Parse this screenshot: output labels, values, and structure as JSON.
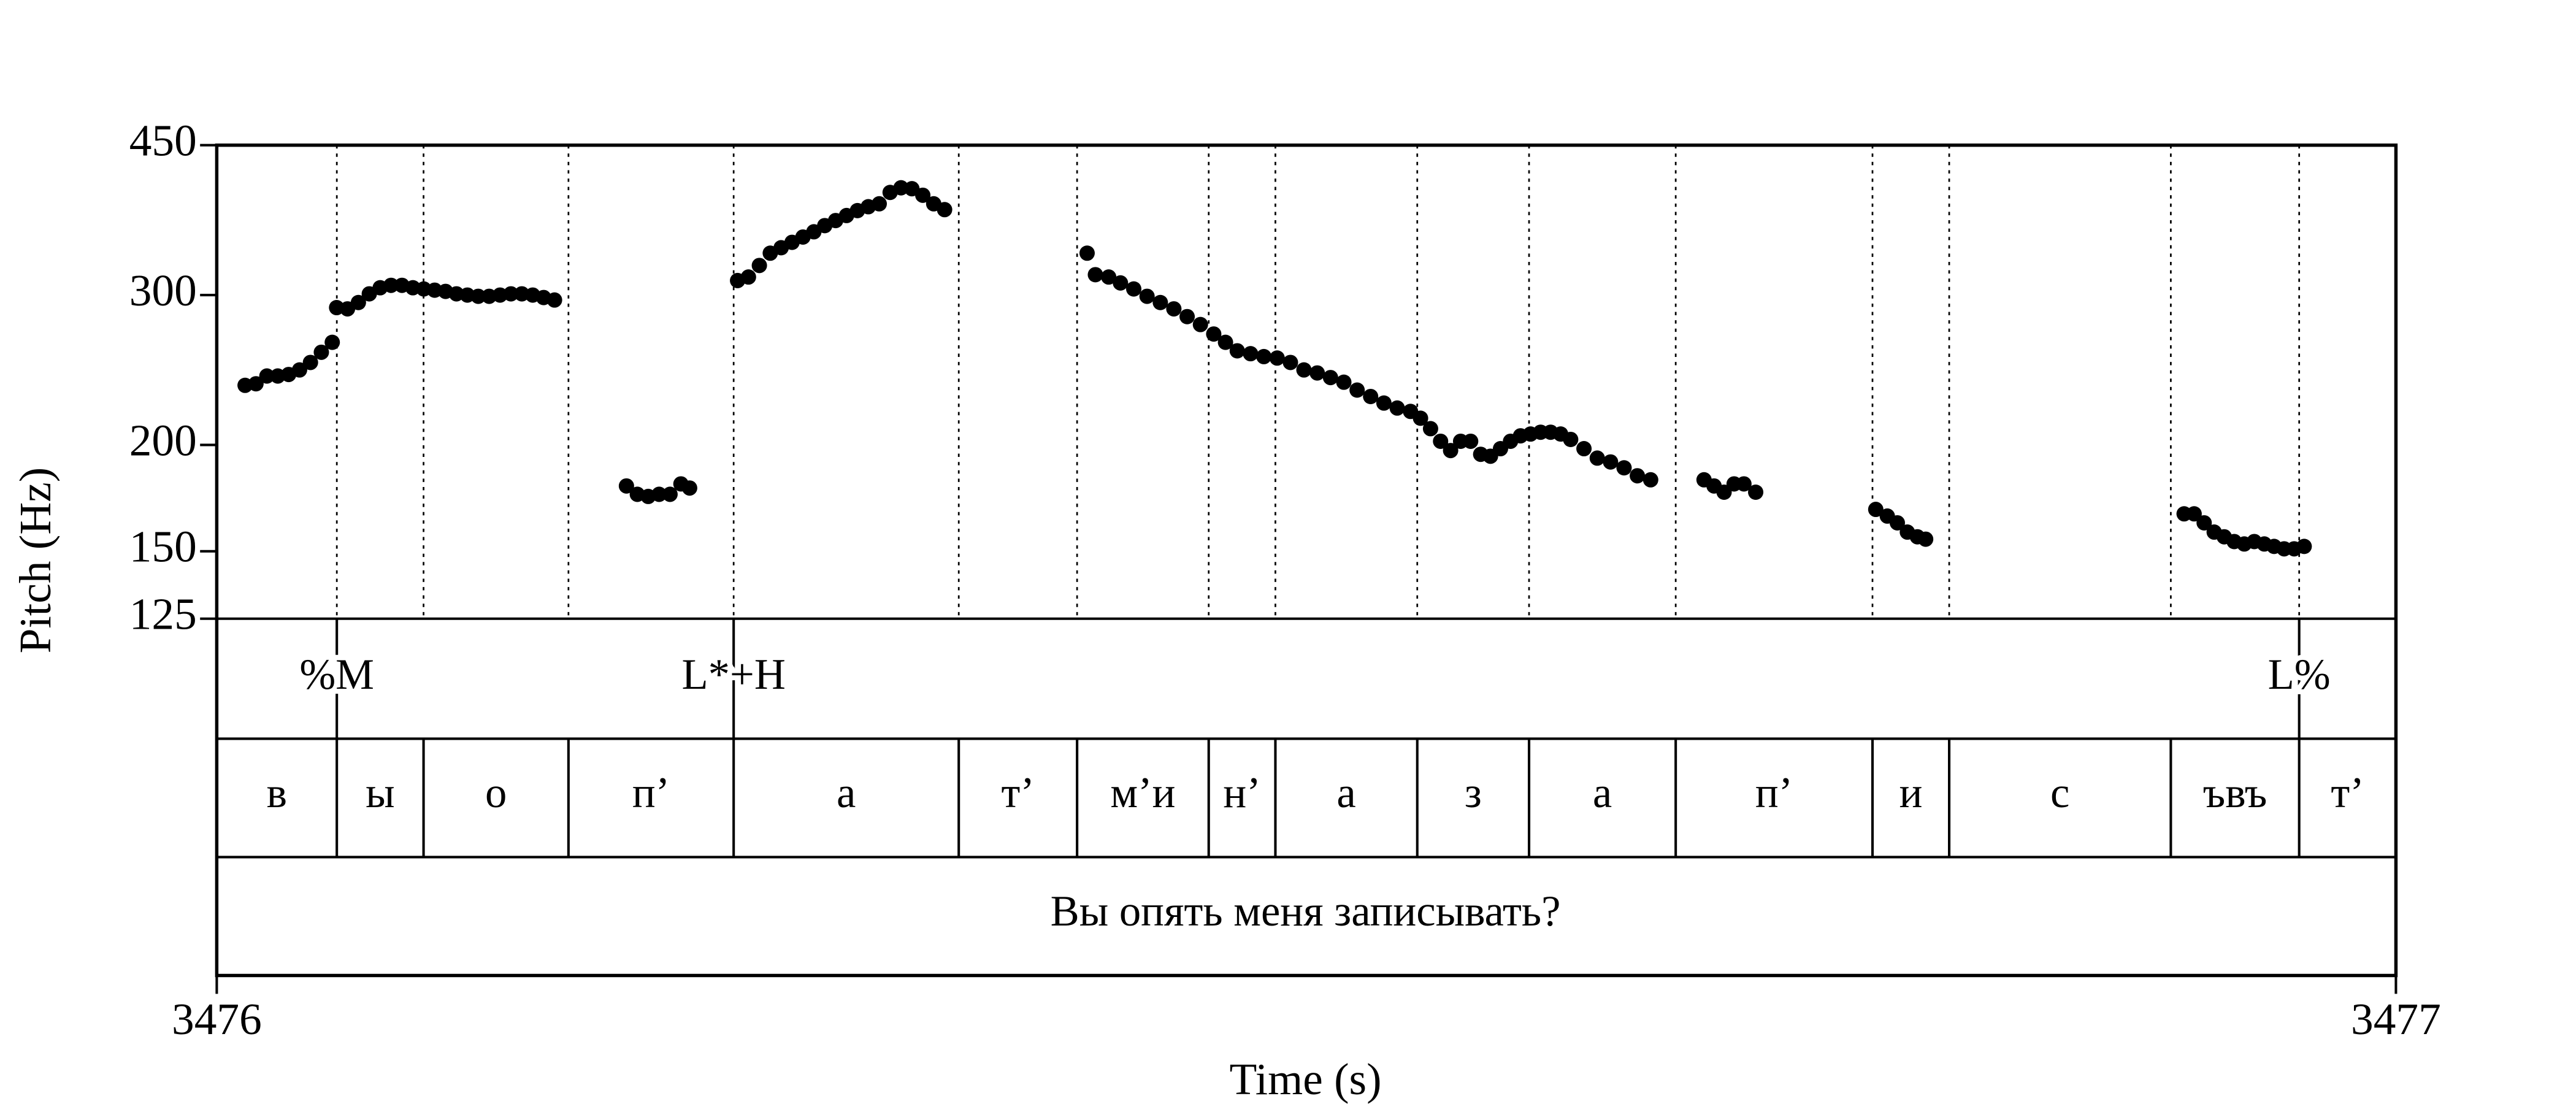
{
  "chart_data": {
    "type": "scatter",
    "y_label": "Pitch (Hz)",
    "x_label": "Time (s)",
    "xlim": [
      3476,
      3477
    ],
    "xticks": [
      3476,
      3477
    ],
    "ylim": [
      125,
      450
    ],
    "yticks": [
      125,
      150,
      200,
      300,
      450
    ],
    "log_y": true,
    "color": "#000000",
    "x": [
      3476.013,
      3476.018,
      3476.023,
      3476.028,
      3476.033,
      3476.038,
      3476.043,
      3476.048,
      3476.053,
      3476.055,
      3476.06,
      3476.065,
      3476.07,
      3476.075,
      3476.08,
      3476.085,
      3476.09,
      3476.095,
      3476.1,
      3476.105,
      3476.11,
      3476.115,
      3476.12,
      3476.125,
      3476.13,
      3476.135,
      3476.14,
      3476.145,
      3476.15,
      3476.155,
      3476.188,
      3476.193,
      3476.198,
      3476.203,
      3476.208,
      3476.213,
      3476.217,
      3476.239,
      3476.244,
      3476.249,
      3476.254,
      3476.259,
      3476.264,
      3476.269,
      3476.274,
      3476.279,
      3476.284,
      3476.289,
      3476.294,
      3476.299,
      3476.304,
      3476.309,
      3476.314,
      3476.319,
      3476.324,
      3476.329,
      3476.334,
      3476.3994,
      3476.4032,
      3476.4093,
      3476.4147,
      3476.4208,
      3476.4269,
      3476.433,
      3476.4392,
      3476.4453,
      3476.4514,
      3476.4575,
      3476.4629,
      3476.4683,
      3476.4744,
      3476.4805,
      3476.4866,
      3476.4927,
      3476.4989,
      3476.505,
      3476.5111,
      3476.5172,
      3476.5233,
      3476.5295,
      3476.5356,
      3476.5417,
      3476.5478,
      3476.5524,
      3476.557,
      3476.5616,
      3476.5662,
      3476.5708,
      3476.5754,
      3476.58,
      3476.5845,
      3476.5891,
      3476.5937,
      3476.5983,
      3476.6029,
      3476.6075,
      3476.6121,
      3476.6167,
      3476.6213,
      3476.6274,
      3476.6335,
      3476.6396,
      3476.6458,
      3476.6519,
      3476.658,
      3476.6825,
      3476.6871,
      3476.6917,
      3476.6963,
      3476.7008,
      3476.7062,
      3476.7613,
      3476.7666,
      3476.7712,
      3476.7758,
      3476.7804,
      3476.7842,
      3476.9028,
      3476.9074,
      3476.912,
      3476.9166,
      3476.9212,
      3476.9258,
      3476.9304,
      3476.935,
      3476.9396,
      3476.9441,
      3476.9487,
      3476.9533,
      3476.9579
    ],
    "values": [
      235,
      236,
      241,
      241,
      242,
      245,
      250,
      257,
      264,
      290,
      289,
      294,
      301,
      306,
      308,
      308,
      306,
      305,
      304,
      303,
      301,
      300,
      299,
      299,
      300,
      301,
      301,
      300,
      298,
      296,
      179,
      175,
      174,
      175,
      175,
      180,
      178,
      312,
      315,
      325,
      336,
      341,
      346,
      351,
      356,
      362,
      367,
      372,
      377,
      381,
      384,
      396,
      401,
      400,
      393,
      384,
      378,
      336,
      317,
      315,
      310,
      305,
      299,
      294,
      289,
      283,
      277,
      270,
      264,
      258,
      256,
      254,
      253,
      250,
      245,
      243,
      240,
      237,
      232,
      228,
      224,
      221,
      219,
      215,
      209,
      202,
      197,
      202,
      202,
      195,
      194,
      198,
      202,
      205,
      206,
      207,
      207,
      206,
      203,
      198,
      193,
      191,
      188,
      184,
      182,
      182,
      179,
      176,
      180,
      180,
      176,
      168,
      165,
      162,
      158,
      156,
      155,
      166,
      166,
      162,
      158,
      156,
      154,
      153,
      154,
      153,
      152,
      151,
      151,
      152
    ],
    "tones": {
      "times": [
        3476.0551,
        3476.2372,
        3476.9556
      ],
      "labels": [
        "%M",
        "L*+H",
        "L%"
      ]
    },
    "segments": {
      "boundaries": [
        3476.0551,
        3476.0949,
        3476.1614,
        3476.2372,
        3476.3405,
        3476.3948,
        3476.4552,
        3476.4858,
        3476.5509,
        3476.6022,
        3476.6695,
        3476.7598,
        3476.795,
        3476.8967,
        3476.9556
      ],
      "labels": [
        "в",
        "ы",
        "о",
        "п’",
        "а",
        "т’",
        "м’и",
        "н’",
        "а",
        "з",
        "а",
        "п’",
        "и",
        "с",
        "ъвъ",
        "т’"
      ]
    },
    "utterance": "Вы опять меня записывать?"
  }
}
